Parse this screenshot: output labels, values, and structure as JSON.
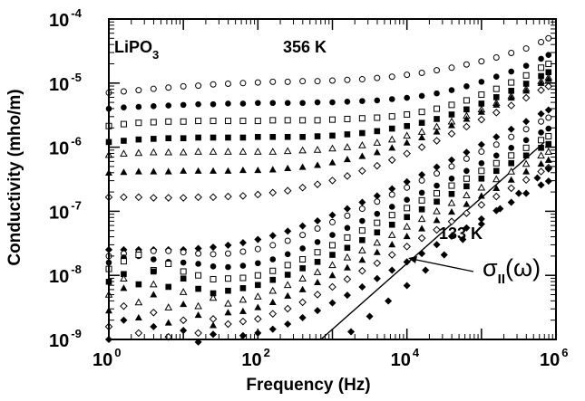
{
  "chart_data": {
    "type": "scatter",
    "title": "",
    "xlabel": "Frequency (Hz)",
    "ylabel": "Conductivity (mho/m)",
    "x_scale": "log",
    "y_scale": "log",
    "xlim": [
      1,
      1000000
    ],
    "ylim": [
      1e-09,
      0.0001
    ],
    "x_ticks": [
      {
        "base": "10",
        "exp": "0",
        "value": 1
      },
      {
        "base": "10",
        "exp": "2",
        "value": 100
      },
      {
        "base": "10",
        "exp": "4",
        "value": 10000
      },
      {
        "base": "10",
        "exp": "6",
        "value": 1000000
      }
    ],
    "y_ticks": [
      {
        "base": "10",
        "exp": "-4",
        "value": 0.0001
      },
      {
        "base": "10",
        "exp": "-5",
        "value": 1e-05
      },
      {
        "base": "10",
        "exp": "-6",
        "value": 1e-06
      },
      {
        "base": "10",
        "exp": "-7",
        "value": 1e-07
      },
      {
        "base": "10",
        "exp": "-8",
        "value": 1e-08
      },
      {
        "base": "10",
        "exp": "-9",
        "value": 1e-09
      }
    ],
    "grid": false,
    "legend": "none",
    "annotations": {
      "sample": {
        "base": "LiPO",
        "sub": "3"
      },
      "top_temperature": "356 K",
      "bottom_temperature": "133 K",
      "sigma_label": {
        "symbol": "σ",
        "sub": "II",
        "arg": "(ω)"
      }
    },
    "fit_line": {
      "x": [
        700,
        700000
      ],
      "y": [
        1e-09,
        1.2e-06
      ]
    },
    "series": [
      {
        "marker": "open-circle",
        "x_log": [
          0,
          0.2,
          0.4,
          0.6,
          0.8,
          1,
          1.2,
          1.4,
          1.6,
          1.8,
          2,
          2.2,
          2.4,
          2.6,
          2.8,
          3,
          3.2,
          3.4,
          3.6,
          3.8,
          4,
          4.2,
          4.4,
          4.6,
          4.8,
          5,
          5.2,
          5.4,
          5.6,
          5.8,
          5.9
        ],
        "y_log": [
          -5.15,
          -5.13,
          -5.11,
          -5.09,
          -5.07,
          -5.05,
          -5.04,
          -5.02,
          -5.01,
          -5,
          -4.99,
          -4.98,
          -4.98,
          -4.97,
          -4.97,
          -4.96,
          -4.95,
          -4.94,
          -4.92,
          -4.9,
          -4.87,
          -4.84,
          -4.8,
          -4.76,
          -4.71,
          -4.66,
          -4.6,
          -4.53,
          -4.46,
          -4.36,
          -4.3
        ]
      },
      {
        "marker": "filled-circle",
        "x_log": [
          0,
          0.2,
          0.4,
          0.6,
          0.8,
          1,
          1.2,
          1.4,
          1.6,
          1.8,
          2,
          2.2,
          2.4,
          2.6,
          2.8,
          3,
          3.2,
          3.4,
          3.6,
          3.8,
          4,
          4.2,
          4.4,
          4.6,
          4.8,
          5,
          5.2,
          5.4,
          5.6,
          5.8,
          5.9
        ],
        "y_log": [
          -5.4,
          -5.38,
          -5.37,
          -5.36,
          -5.35,
          -5.34,
          -5.33,
          -5.33,
          -5.32,
          -5.32,
          -5.31,
          -5.31,
          -5.31,
          -5.31,
          -5.3,
          -5.3,
          -5.29,
          -5.28,
          -5.27,
          -5.25,
          -5.23,
          -5.2,
          -5.16,
          -5.11,
          -5.05,
          -4.98,
          -4.9,
          -4.82,
          -4.73,
          -4.62,
          -4.56
        ]
      },
      {
        "marker": "open-square",
        "x_log": [
          0,
          0.2,
          0.4,
          0.6,
          0.8,
          1,
          1.2,
          1.4,
          1.6,
          1.8,
          2,
          2.2,
          2.4,
          2.6,
          2.8,
          3,
          3.2,
          3.4,
          3.6,
          3.8,
          4,
          4.2,
          4.4,
          4.6,
          4.8,
          5,
          5.2,
          5.4,
          5.6,
          5.8,
          5.9
        ],
        "y_log": [
          -5.67,
          -5.64,
          -5.62,
          -5.61,
          -5.6,
          -5.6,
          -5.59,
          -5.59,
          -5.59,
          -5.59,
          -5.59,
          -5.58,
          -5.58,
          -5.58,
          -5.58,
          -5.57,
          -5.56,
          -5.55,
          -5.54,
          -5.52,
          -5.49,
          -5.45,
          -5.4,
          -5.34,
          -5.27,
          -5.18,
          -5.09,
          -4.99,
          -4.88,
          -4.76,
          -4.7
        ]
      },
      {
        "marker": "filled-square",
        "x_log": [
          0,
          0.2,
          0.4,
          0.6,
          0.8,
          1,
          1.2,
          1.4,
          1.6,
          1.8,
          2,
          2.2,
          2.4,
          2.6,
          2.8,
          3,
          3.2,
          3.4,
          3.6,
          3.8,
          4,
          4.2,
          4.4,
          4.6,
          4.8,
          5,
          5.2,
          5.4,
          5.6,
          5.8,
          5.9
        ],
        "y_log": [
          -5.92,
          -5.9,
          -5.88,
          -5.87,
          -5.86,
          -5.86,
          -5.85,
          -5.85,
          -5.85,
          -5.85,
          -5.84,
          -5.84,
          -5.84,
          -5.84,
          -5.83,
          -5.82,
          -5.8,
          -5.78,
          -5.75,
          -5.71,
          -5.67,
          -5.62,
          -5.56,
          -5.49,
          -5.41,
          -5.32,
          -5.22,
          -5.12,
          -5.01,
          -4.89,
          -4.83
        ]
      },
      {
        "marker": "open-triangle",
        "x_log": [
          0,
          0.2,
          0.4,
          0.6,
          0.8,
          1,
          1.2,
          1.4,
          1.6,
          1.8,
          2,
          2.2,
          2.4,
          2.6,
          2.8,
          3,
          3.2,
          3.4,
          3.6,
          3.8,
          4,
          4.2,
          4.4,
          4.6,
          4.8,
          5,
          5.2,
          5.4,
          5.6,
          5.8,
          5.9
        ],
        "y_log": [
          -6.12,
          -6.1,
          -6.09,
          -6.08,
          -6.08,
          -6.08,
          -6.07,
          -6.07,
          -6.07,
          -6.07,
          -6.07,
          -6.07,
          -6.06,
          -6.05,
          -6.04,
          -6.02,
          -6,
          -5.97,
          -5.93,
          -5.88,
          -5.82,
          -5.76,
          -5.68,
          -5.6,
          -5.51,
          -5.41,
          -5.31,
          -5.2,
          -5.09,
          -4.97,
          -4.91
        ]
      },
      {
        "marker": "filled-triangle",
        "x_log": [
          0,
          0.2,
          0.4,
          0.6,
          0.8,
          1,
          1.2,
          1.4,
          1.6,
          1.8,
          2,
          2.2,
          2.4,
          2.6,
          2.8,
          3,
          3.2,
          3.4,
          3.6,
          3.8,
          4,
          4.2,
          4.4,
          4.6,
          4.8,
          5,
          5.2,
          5.4,
          5.6,
          5.8,
          5.9
        ],
        "y_log": [
          -6.4,
          -6.39,
          -6.38,
          -6.38,
          -6.38,
          -6.37,
          -6.37,
          -6.37,
          -6.37,
          -6.36,
          -6.36,
          -6.35,
          -6.33,
          -6.31,
          -6.28,
          -6.24,
          -6.19,
          -6.14,
          -6.08,
          -6.01,
          -5.93,
          -5.85,
          -5.76,
          -5.66,
          -5.56,
          -5.45,
          -5.34,
          -5.23,
          -5.12,
          -5,
          -4.94
        ]
      },
      {
        "marker": "open-diamond",
        "x_log": [
          0,
          0.2,
          0.4,
          0.6,
          0.8,
          1,
          1.2,
          1.4,
          1.6,
          1.8,
          2,
          2.2,
          2.4,
          2.6,
          2.8,
          3,
          3.2,
          3.4,
          3.6,
          3.8,
          4,
          4.2,
          4.4,
          4.6,
          4.8,
          5,
          5.2,
          5.4,
          5.6,
          5.8,
          5.9
        ],
        "y_log": [
          -6.78,
          -6.78,
          -6.78,
          -6.79,
          -6.79,
          -6.79,
          -6.78,
          -6.78,
          -6.77,
          -6.76,
          -6.74,
          -6.71,
          -6.68,
          -6.63,
          -6.58,
          -6.52,
          -6.45,
          -6.37,
          -6.29,
          -6.2,
          -6.1,
          -6,
          -5.9,
          -5.79,
          -5.68,
          -5.57,
          -5.46,
          -5.35,
          -5.23,
          -5.11,
          -5.05
        ]
      },
      {
        "marker": "filled-diamond",
        "x_log": [
          0,
          0.2,
          0.4,
          0.6,
          0.8,
          1,
          1.2,
          1.4,
          1.6,
          1.8,
          2,
          2.2,
          2.4,
          2.6,
          2.8,
          3,
          3.2,
          3.4,
          3.6,
          3.8,
          4,
          4.2,
          4.4,
          4.6,
          4.8,
          5,
          5.2,
          5.4,
          5.6,
          5.8,
          5.9
        ],
        "y_log": [
          -7.6,
          -7.6,
          -7.6,
          -7.6,
          -7.6,
          -7.6,
          -7.58,
          -7.56,
          -7.53,
          -7.49,
          -7.44,
          -7.38,
          -7.31,
          -7.23,
          -7.15,
          -7.06,
          -6.96,
          -6.86,
          -6.76,
          -6.65,
          -6.54,
          -6.43,
          -6.31,
          -6.2,
          -6.08,
          -5.96,
          -5.84,
          -5.72,
          -5.6,
          -5.48,
          -5.42
        ]
      },
      {
        "marker": "open-circle",
        "x_log": [
          0,
          0.2,
          0.4,
          0.6,
          0.8,
          1,
          1.2,
          1.4,
          1.6,
          1.8,
          2,
          2.2,
          2.4,
          2.6,
          2.8,
          3,
          3.2,
          3.4,
          3.6,
          3.8,
          4,
          4.2,
          4.4,
          4.6,
          4.8,
          5,
          5.2,
          5.4,
          5.6,
          5.8,
          5.9
        ],
        "y_log": [
          -7.7,
          -7.66,
          -7.64,
          -7.62,
          -7.62,
          -7.64,
          -7.66,
          -7.67,
          -7.66,
          -7.63,
          -7.59,
          -7.53,
          -7.46,
          -7.37,
          -7.27,
          -7.17,
          -7.07,
          -6.96,
          -6.85,
          -6.74,
          -6.63,
          -6.52,
          -6.41,
          -6.3,
          -6.18,
          -6.07,
          -5.96,
          -5.84,
          -5.72,
          -5.6,
          -5.54
        ]
      },
      {
        "marker": "filled-circle",
        "x_log": [
          0,
          0.2,
          0.4,
          0.6,
          0.8,
          1,
          1.2,
          1.4,
          1.6,
          1.8,
          2,
          2.2,
          2.4,
          2.6,
          2.8,
          3,
          3.2,
          3.4,
          3.6,
          3.8,
          4,
          4.2,
          4.4,
          4.6,
          4.8,
          5,
          5.2,
          5.4,
          5.6,
          5.8,
          5.9
        ],
        "y_log": [
          -7.8,
          -7.72,
          -7.7,
          -7.75,
          -7.79,
          -7.8,
          -7.82,
          -7.86,
          -7.87,
          -7.85,
          -7.81,
          -7.75,
          -7.67,
          -7.58,
          -7.48,
          -7.37,
          -7.26,
          -7.15,
          -7.04,
          -6.93,
          -6.82,
          -6.71,
          -6.6,
          -6.49,
          -6.37,
          -6.25,
          -6.13,
          -6.01,
          -5.89,
          -5.77,
          -5.71
        ]
      },
      {
        "marker": "open-square",
        "x_log": [
          0,
          0.2,
          0.4,
          0.6,
          0.8,
          1,
          1.2,
          1.4,
          1.6,
          1.8,
          2,
          2.2,
          2.4,
          2.6,
          2.8,
          3,
          3.2,
          3.4,
          3.6,
          3.8,
          4,
          4.2,
          4.4,
          4.6,
          4.8,
          5,
          5.2,
          5.4,
          5.6,
          5.8,
          5.9
        ],
        "y_log": [
          -7.9,
          -7.78,
          -7.68,
          -7.92,
          -7.82,
          -7.94,
          -8,
          -8.06,
          -8.05,
          -8.04,
          -8,
          -7.93,
          -7.84,
          -7.75,
          -7.64,
          -7.53,
          -7.41,
          -7.3,
          -7.18,
          -7.06,
          -6.95,
          -6.83,
          -6.72,
          -6.6,
          -6.49,
          -6.37,
          -6.25,
          -6.13,
          -6.01,
          -5.89,
          -5.83
        ]
      },
      {
        "marker": "filled-square",
        "x_log": [
          0,
          0.2,
          0.4,
          0.6,
          0.8,
          1,
          1.2,
          1.4,
          1.6,
          1.8,
          2,
          2.2,
          2.4,
          2.6,
          2.8,
          3,
          3.2,
          3.4,
          3.6,
          3.8,
          4,
          4.2,
          4.4,
          4.6,
          4.8,
          5,
          5.2,
          5.4,
          5.6,
          5.8,
          5.9
        ],
        "y_log": [
          -8.1,
          -7.98,
          -8.14,
          -7.94,
          -8.18,
          -8.05,
          -8.21,
          -8.28,
          -8.24,
          -8.2,
          -8.15,
          -8.07,
          -7.99,
          -7.89,
          -7.79,
          -7.68,
          -7.57,
          -7.45,
          -7.33,
          -7.21,
          -7.09,
          -6.97,
          -6.85,
          -6.73,
          -6.61,
          -6.49,
          -6.37,
          -6.25,
          -6.13,
          -6.01,
          -5.95
        ]
      },
      {
        "marker": "open-triangle",
        "x_log": [
          0,
          0.2,
          0.4,
          0.6,
          0.8,
          1,
          1.2,
          1.4,
          1.6,
          1.8,
          2,
          2.2,
          2.4,
          2.6,
          2.8,
          3,
          3.2,
          3.4,
          3.6,
          3.8,
          4,
          4.2,
          4.4,
          4.6,
          4.8,
          5,
          5.2,
          5.4,
          5.6,
          5.8,
          5.9
        ],
        "y_log": [
          -8.3,
          -8.05,
          -8.42,
          -8.14,
          -8.5,
          -8.26,
          -8.48,
          -8.35,
          -8.44,
          -8.38,
          -8.33,
          -8.24,
          -8.15,
          -8.05,
          -7.95,
          -7.84,
          -7.72,
          -7.61,
          -7.49,
          -7.37,
          -7.24,
          -7.12,
          -7,
          -6.87,
          -6.75,
          -6.63,
          -6.5,
          -6.38,
          -6.26,
          -6.13,
          -6.07
        ]
      },
      {
        "marker": "filled-triangle",
        "x_log": [
          0,
          0.2,
          0.4,
          0.6,
          0.8,
          1,
          1.2,
          1.4,
          1.6,
          1.8,
          2,
          2.2,
          2.4,
          2.6,
          2.8,
          3,
          3.2,
          3.4,
          3.6,
          3.8,
          4,
          4.2,
          4.4,
          4.6,
          4.8,
          5,
          5.2,
          5.4,
          5.6,
          5.8,
          5.9
        ],
        "y_log": [
          -8.55,
          -8.2,
          -8.66,
          -8.3,
          -8.74,
          -8.45,
          -8.62,
          -8.78,
          -8.58,
          -8.56,
          -8.5,
          -8.42,
          -8.32,
          -8.22,
          -8.11,
          -8,
          -7.88,
          -7.76,
          -7.64,
          -7.52,
          -7.39,
          -7.27,
          -7.14,
          -7.01,
          -6.89,
          -6.76,
          -6.64,
          -6.51,
          -6.38,
          -6.26,
          -6.2
        ]
      },
      {
        "marker": "open-diamond",
        "x_log": [
          0,
          0.2,
          0.4,
          0.6,
          0.8,
          1,
          1.2,
          1.4,
          1.6,
          1.8,
          2,
          2.2,
          2.4,
          2.6,
          2.8,
          3,
          3.2,
          3.4,
          3.6,
          3.8,
          4,
          4.2,
          4.4,
          4.6,
          4.8,
          5,
          5.2,
          5.4,
          5.6,
          5.8,
          5.9
        ],
        "y_log": [
          -8.8,
          -8.48,
          -8.9,
          -8.58,
          -8.96,
          -8.7,
          -8.9,
          -8.68,
          -8.76,
          -8.72,
          -8.68,
          -8.6,
          -8.52,
          -8.42,
          -8.3,
          -8.18,
          -8.06,
          -7.93,
          -7.81,
          -7.68,
          -7.55,
          -7.42,
          -7.29,
          -7.16,
          -7.03,
          -6.9,
          -6.77,
          -6.64,
          -6.51,
          -6.38,
          -6.32
        ]
      },
      {
        "marker": "filled-diamond",
        "x_log": [
          0,
          0.2,
          0.4,
          0.6,
          0.8,
          1,
          1.2,
          1.4,
          1.6,
          1.8,
          2,
          2.2,
          2.4,
          2.6,
          2.8,
          3,
          3.2,
          3.4,
          3.6,
          3.8,
          4,
          4.2,
          4.4,
          4.6,
          4.8,
          5,
          5.2,
          5.4,
          5.6,
          5.8,
          5.9
        ],
        "y_log": [
          -9,
          -8.7,
          -9.06,
          -8.8,
          -9.1,
          -8.86,
          -9.04,
          -8.92,
          -9.06,
          -8.94,
          -8.9,
          -8.84,
          -8.76,
          -8.66,
          -8.55,
          -8.43,
          -8.31,
          -8.18,
          -8.05,
          -7.92,
          -7.79,
          -7.66,
          -7.52,
          -7.39,
          -7.26,
          -7.12,
          -6.99,
          -6.86,
          -6.72,
          -6.59,
          -6.53
        ]
      },
      {
        "marker": "filled-diamond",
        "x_log": [
          3,
          3.25,
          3.5,
          3.75,
          4,
          4.25,
          4.5,
          4.75,
          5,
          5.25,
          5.5,
          5.75,
          5.9
        ],
        "y_log": [
          -9.12,
          -8.88,
          -8.64,
          -8.4,
          -8.16,
          -7.92,
          -7.68,
          -7.44,
          -7.2,
          -6.96,
          -6.72,
          -6.48,
          -6.34
        ]
      }
    ]
  }
}
